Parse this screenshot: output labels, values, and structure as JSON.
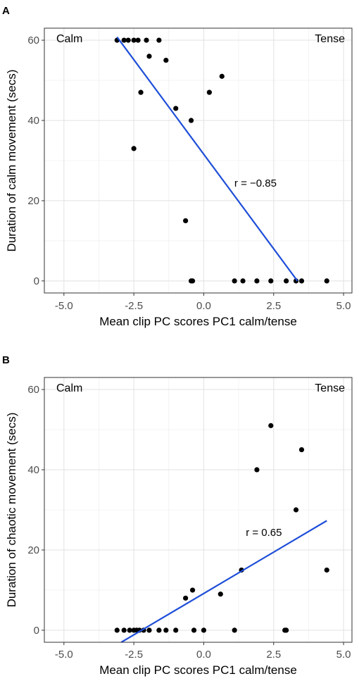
{
  "chart_data": [
    {
      "panel_label": "A",
      "type": "scatter",
      "xlabel": "Mean clip PC scores PC1 calm/tense",
      "ylabel": "Duration of calm movement (secs)",
      "xlim": [
        -5.7,
        5.3
      ],
      "ylim": [
        -3,
        63
      ],
      "xticks": [
        -5.0,
        -2.5,
        0.0,
        2.5,
        5.0
      ],
      "xtick_labels": [
        "-5.0",
        "-2.5",
        "0.0",
        "2.5",
        "5.0"
      ],
      "yticks": [
        0,
        20,
        40,
        60
      ],
      "ytick_labels": [
        "0",
        "20",
        "40",
        "60"
      ],
      "grid": true,
      "corner_labels": {
        "left": "Calm",
        "right": "Tense"
      },
      "annotation": {
        "text": "r = −0.85",
        "x": 1.85,
        "y": 23.5
      },
      "fit_line": {
        "x": [
          -3.1,
          3.35
        ],
        "y": [
          60.8,
          0
        ]
      },
      "points": {
        "x": [
          -3.1,
          -2.85,
          -2.7,
          -2.5,
          -2.35,
          -2.05,
          -1.6,
          -1.95,
          -1.35,
          -2.25,
          -2.5,
          -1.0,
          -0.65,
          -0.45,
          -0.4,
          0.2,
          0.65,
          -0.45,
          1.1,
          1.4,
          1.9,
          2.4,
          2.95,
          3.3,
          3.5,
          4.4
        ],
        "y": [
          60,
          60,
          60,
          60,
          60,
          60,
          60,
          56,
          55,
          47,
          33,
          43,
          15,
          40,
          0,
          47,
          51,
          0,
          0,
          0,
          0,
          0,
          0,
          0,
          0,
          0
        ]
      }
    },
    {
      "panel_label": "B",
      "type": "scatter",
      "xlabel": "Mean clip PC scores PC1 calm/tense",
      "ylabel": "Duration of chaotic movement (secs)",
      "xlim": [
        -5.7,
        5.3
      ],
      "ylim": [
        -3,
        63
      ],
      "xticks": [
        -5.0,
        -2.5,
        0.0,
        2.5,
        5.0
      ],
      "xtick_labels": [
        "-5.0",
        "-2.5",
        "0.0",
        "2.5",
        "5.0"
      ],
      "yticks": [
        0,
        20,
        40,
        60
      ],
      "ytick_labels": [
        "0",
        "20",
        "40",
        "60"
      ],
      "grid": true,
      "corner_labels": {
        "left": "Calm",
        "right": "Tense"
      },
      "annotation": {
        "text": "r = 0.65",
        "x": 2.15,
        "y": 23.5
      },
      "fit_line": {
        "x": [
          -2.95,
          4.4
        ],
        "y": [
          -3,
          27.3
        ]
      },
      "points": {
        "x": [
          -3.1,
          -2.85,
          -2.65,
          -2.5,
          -2.4,
          -2.3,
          -2.15,
          -1.95,
          -1.6,
          -1.35,
          -1.0,
          -0.65,
          -0.4,
          -0.35,
          0.0,
          0.6,
          1.1,
          1.35,
          1.9,
          2.4,
          2.9,
          2.95,
          3.3,
          3.5,
          4.4
        ],
        "y": [
          0,
          0,
          0,
          0,
          0,
          0,
          0,
          0,
          0,
          0,
          0,
          8,
          10,
          0,
          0,
          9,
          0,
          15,
          40,
          51,
          0,
          0,
          30,
          45,
          15
        ]
      }
    }
  ]
}
